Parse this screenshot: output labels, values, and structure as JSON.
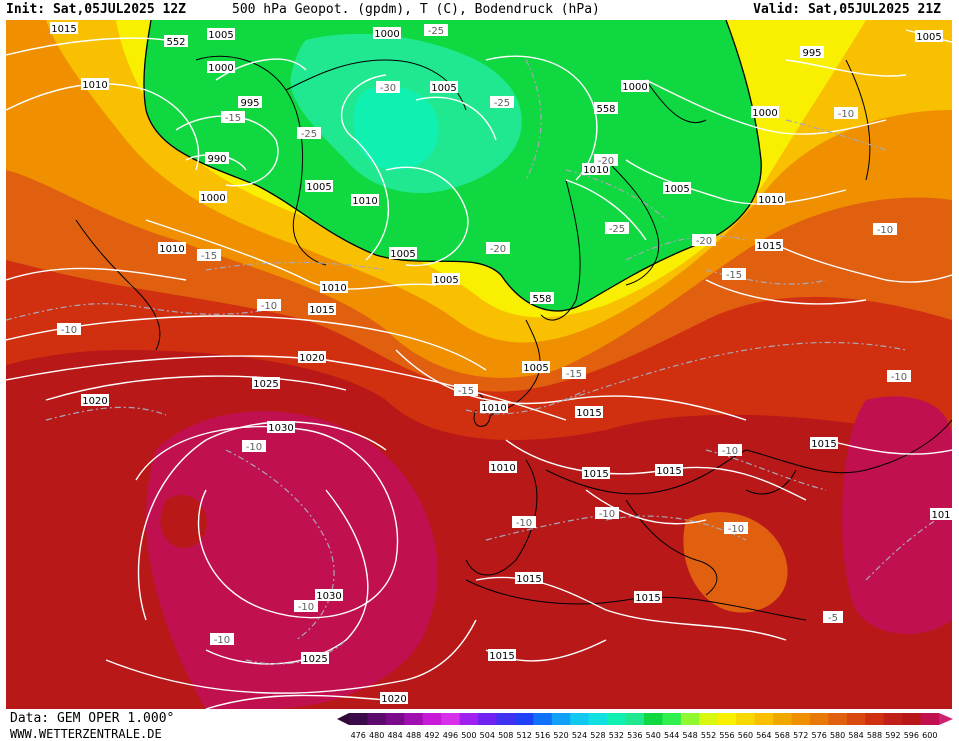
{
  "header": {
    "init": "Init: Sat,05JUL2025 12Z",
    "title": "500 hPa Geopot. (gpdm), T (C), Bodendruck (hPa)",
    "valid": "Valid: Sat,05JUL2025 21Z"
  },
  "footer": {
    "source": "Data: GEM OPER 1.000°",
    "url": "WWW.WETTERZENTRALE.DE"
  },
  "colors": {
    "green": "#10d840",
    "mint": "#20e890",
    "yellow": "#f8f000",
    "gold": "#f8c000",
    "orange": "#f09000",
    "darkorange": "#e06010",
    "red": "#d03010",
    "deepred": "#b81818",
    "crimson": "#b01030"
  },
  "scale": {
    "values": [
      "476",
      "480",
      "484",
      "488",
      "492",
      "496",
      "500",
      "504",
      "508",
      "512",
      "516",
      "520",
      "524",
      "528",
      "532",
      "536",
      "540",
      "544",
      "548",
      "552",
      "556",
      "560",
      "564",
      "568",
      "572",
      "576",
      "580",
      "584",
      "588",
      "592",
      "596",
      "600"
    ],
    "colors": [
      "#3a0a4a",
      "#5a0a6a",
      "#7a0a8a",
      "#a010b0",
      "#c818d8",
      "#d830e8",
      "#a020f0",
      "#7020f0",
      "#4030f0",
      "#2040f8",
      "#1070f8",
      "#10a0f8",
      "#10c8f0",
      "#10e0e0",
      "#10f0b0",
      "#20e890",
      "#10d840",
      "#30f050",
      "#90f830",
      "#d8f810",
      "#f8f000",
      "#f8d800",
      "#f8c000",
      "#f0a800",
      "#f09000",
      "#e87808",
      "#e06010",
      "#d84810",
      "#d03010",
      "#c02018",
      "#b81818",
      "#c01050"
    ]
  },
  "pressure_labels": [
    {
      "text": "1015"
    },
    {
      "text": "1005"
    },
    {
      "text": "1000"
    },
    {
      "text": "995"
    },
    {
      "text": "1010"
    },
    {
      "text": "990"
    },
    {
      "text": "1000"
    },
    {
      "text": "1005"
    },
    {
      "text": "1010"
    },
    {
      "text": "1010"
    },
    {
      "text": "1005"
    },
    {
      "text": "1000"
    },
    {
      "text": "1005"
    },
    {
      "text": "1010"
    },
    {
      "text": "1015"
    },
    {
      "text": "1020"
    },
    {
      "text": "1025"
    },
    {
      "text": "1020"
    },
    {
      "text": "1030"
    },
    {
      "text": "1030"
    },
    {
      "text": "1025"
    },
    {
      "text": "1020"
    },
    {
      "text": "1015"
    },
    {
      "text": "1015"
    },
    {
      "text": "1015"
    },
    {
      "text": "1015"
    },
    {
      "text": "1015"
    },
    {
      "text": "1015"
    },
    {
      "text": "1005"
    },
    {
      "text": "1010"
    },
    {
      "text": "1005"
    },
    {
      "text": "1010"
    },
    {
      "text": "1015"
    },
    {
      "text": "1015"
    },
    {
      "text": "1010"
    },
    {
      "text": "1000"
    },
    {
      "text": "995"
    },
    {
      "text": "1005"
    },
    {
      "text": "1005"
    },
    {
      "text": "1000"
    },
    {
      "text": "1010"
    },
    {
      "text": "101"
    }
  ],
  "temperature_labels": [
    {
      "text": "-25"
    },
    {
      "text": "-30"
    },
    {
      "text": "-25"
    },
    {
      "text": "-25"
    },
    {
      "text": "-15"
    },
    {
      "text": "-20"
    },
    {
      "text": "-25"
    },
    {
      "text": "-20"
    },
    {
      "text": "-15"
    },
    {
      "text": "-10"
    },
    {
      "text": "-10"
    },
    {
      "text": "-15"
    },
    {
      "text": "-15"
    },
    {
      "text": "-10"
    },
    {
      "text": "-10"
    },
    {
      "text": "-10"
    },
    {
      "text": "-10"
    },
    {
      "text": "-10"
    },
    {
      "text": "-20"
    },
    {
      "text": "-15"
    },
    {
      "text": "-10"
    },
    {
      "text": "-10"
    },
    {
      "text": "-10"
    },
    {
      "text": "-10"
    },
    {
      "text": "-10"
    },
    {
      "text": "-5"
    }
  ],
  "geopotential_labels": [
    {
      "text": "552"
    },
    {
      "text": "558"
    },
    {
      "text": "558"
    }
  ]
}
